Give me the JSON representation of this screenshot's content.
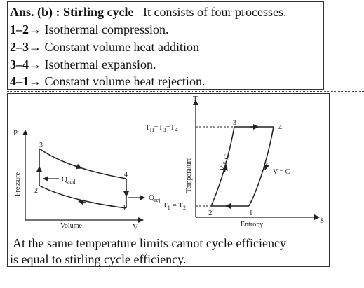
{
  "answer": {
    "prefix": "Ans. (b) : Stirling cycle",
    "rest": "– It consists of four processes."
  },
  "processes": [
    {
      "step": "1–2",
      "desc": "Isothermal compression."
    },
    {
      "step": "2–3",
      "desc": "Constant volume heat addition"
    },
    {
      "step": "3–4",
      "desc": "Isothermal expansion."
    },
    {
      "step": "4–1",
      "desc": "Constant volume heat rejection."
    }
  ],
  "arrow_glyph": "→",
  "pv_diagram": {
    "y_axis": "P",
    "x_axis": "V",
    "y_label": "Pressure",
    "x_label": "Volume",
    "points": [
      "1",
      "2",
      "3",
      "4"
    ],
    "q_add": "add",
    "q_rej": "rej",
    "q_symbol": "Q"
  },
  "ts_diagram": {
    "y_axis": "T",
    "x_axis": "S",
    "y_label": "Temperature",
    "x_label": "Entropy",
    "points": [
      "1",
      "2",
      "3",
      "4"
    ],
    "t_high": "T_H=T_3=T_4",
    "t_low": "T_1 = T_2",
    "const_v_left": "V = C",
    "const_v_right": "V = C"
  },
  "conclusion": {
    "line1": "At the same temperature limits carnot cycle efficiency",
    "line2": "is equal to stirling cycle efficiency."
  }
}
